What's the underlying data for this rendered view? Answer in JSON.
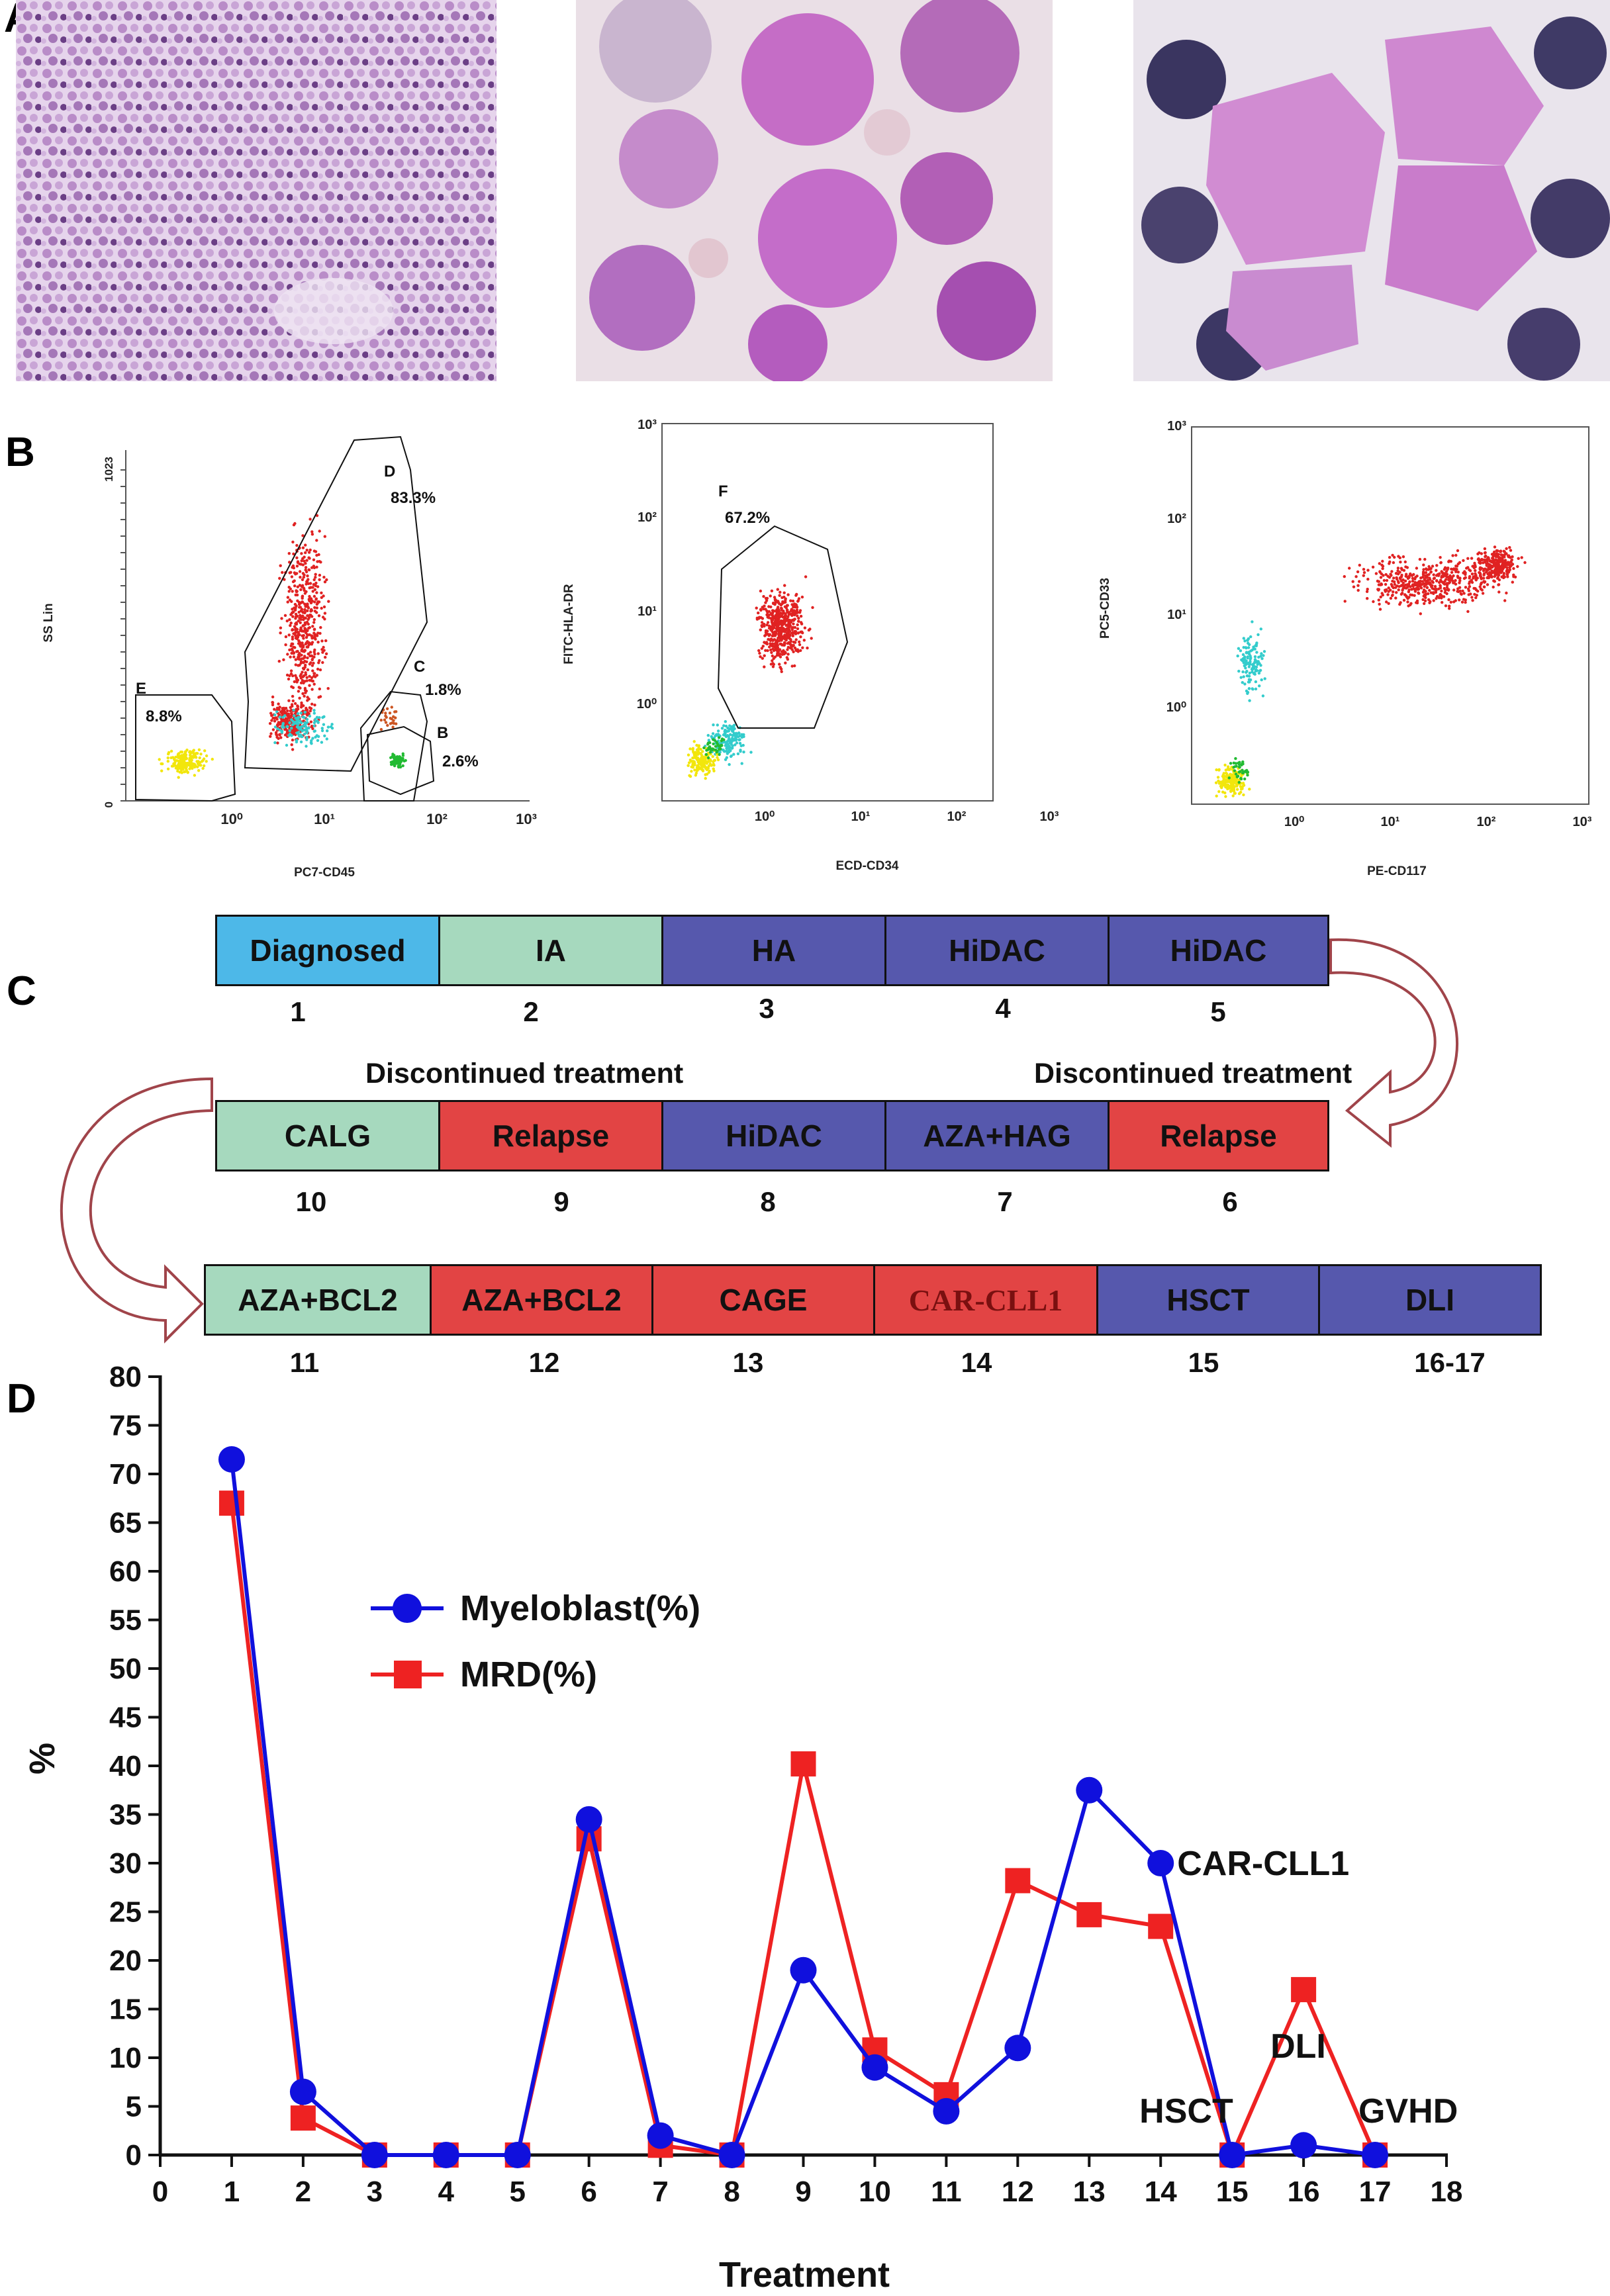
{
  "panels": {
    "A": "A",
    "B": "B",
    "C": "C",
    "D": "D"
  },
  "colors": {
    "myeloblast": "#1010dd",
    "mrd": "#ee2222",
    "diagnosed": "#4db8e8",
    "induction": "#a6d9be",
    "consolidation": "#5658ad",
    "relapse": "#e24444",
    "arrow": "#a0444a"
  },
  "flow": {
    "plot1": {
      "ylabel": "SS Lin",
      "xlabel": "PC7-CD45",
      "ymax_tick": "1023",
      "y0_tick": "0",
      "xticks": [
        "10⁰",
        "10¹",
        "10²",
        "10³"
      ],
      "gates": [
        {
          "letter": "D",
          "pct": "83.3%"
        },
        {
          "letter": "C",
          "pct": "1.8%"
        },
        {
          "letter": "B",
          "pct": "2.6%"
        },
        {
          "letter": "E",
          "pct": "8.8%"
        }
      ]
    },
    "plot2": {
      "ylabel": "FITC-HLA-DR",
      "xlabel": "ECD-CD34",
      "yticks": [
        "10³",
        "10²",
        "10¹",
        "10⁰"
      ],
      "xticks": [
        "10⁰",
        "10¹",
        "10²",
        "10³"
      ],
      "gates": [
        {
          "letter": "F",
          "pct": "67.2%"
        }
      ]
    },
    "plot3": {
      "ylabel": "PC5-CD33",
      "xlabel": "PE-CD117",
      "yticks": [
        "10³",
        "10²",
        "10¹",
        "10⁰"
      ],
      "xticks": [
        "10⁰",
        "10¹",
        "10²",
        "10³"
      ]
    }
  },
  "timeline": {
    "row1": [
      {
        "label": "Diagnosed",
        "num": "1",
        "kind": "diagnosed"
      },
      {
        "label": "IA",
        "num": "2",
        "kind": "induction"
      },
      {
        "label": "HA",
        "num": "3",
        "kind": "consolidation"
      },
      {
        "label": "HiDAC",
        "num": "4",
        "kind": "consolidation"
      },
      {
        "label": "HiDAC",
        "num": "5",
        "kind": "consolidation"
      }
    ],
    "row2": [
      {
        "label": "CALG",
        "num": "10",
        "kind": "induction"
      },
      {
        "label": "Relapse",
        "num": "9",
        "kind": "relapse"
      },
      {
        "label": "HiDAC",
        "num": "8",
        "kind": "consolidation"
      },
      {
        "label": "AZA+HAG",
        "num": "7",
        "kind": "consolidation"
      },
      {
        "label": "Relapse",
        "num": "6",
        "kind": "relapse"
      }
    ],
    "row3": [
      {
        "label": "AZA+BCL2",
        "num": "11",
        "kind": "induction"
      },
      {
        "label": "AZA+BCL2",
        "num": "12",
        "kind": "relapse"
      },
      {
        "label": "CAGE",
        "num": "13",
        "kind": "relapse"
      },
      {
        "label": "CAR-CLL1",
        "num": "14",
        "kind": "relapse"
      },
      {
        "label": "HSCT",
        "num": "15",
        "kind": "consolidation"
      },
      {
        "label": "DLI",
        "num": "16-17",
        "kind": "consolidation"
      }
    ],
    "discontinued_1": "Discontinued treatment",
    "discontinued_2": "Discontinued treatment"
  },
  "chart_data": {
    "type": "line",
    "title": "",
    "xlabel": "Treatment",
    "ylabel": "%",
    "xlim": [
      0,
      18
    ],
    "ylim": [
      0,
      80
    ],
    "x": [
      1,
      2,
      3,
      4,
      5,
      6,
      7,
      8,
      9,
      10,
      11,
      12,
      13,
      14,
      15,
      16,
      17
    ],
    "xticks": [
      "0",
      "1",
      "2",
      "3",
      "4",
      "5",
      "6",
      "7",
      "8",
      "9",
      "10",
      "11",
      "12",
      "13",
      "14",
      "15",
      "16",
      "17",
      "18"
    ],
    "yticks": [
      "0",
      "5",
      "10",
      "15",
      "20",
      "25",
      "30",
      "35",
      "40",
      "45",
      "50",
      "55",
      "60",
      "65",
      "70",
      "75",
      "80"
    ],
    "series": [
      {
        "name": "Myeloblast(%)",
        "marker": "circle",
        "values": [
          71.5,
          6.5,
          0,
          0,
          0,
          34.5,
          2,
          0,
          19,
          9,
          4.5,
          11,
          37.5,
          30,
          0,
          1,
          0
        ]
      },
      {
        "name": "MRD(%)",
        "marker": "square",
        "values": [
          67,
          3.8,
          0,
          0,
          0,
          32.5,
          1,
          0,
          40.2,
          10.8,
          6.2,
          28.2,
          24.7,
          23.5,
          0,
          17,
          0
        ]
      }
    ],
    "annotations": [
      {
        "text": "CAR-CLL1",
        "x": 14,
        "y": 30
      },
      {
        "text": "HSCT",
        "x": 15,
        "y": 4
      },
      {
        "text": "DLI",
        "x": 16,
        "y": 10
      },
      {
        "text": "GVHD",
        "x": 17,
        "y": 4
      }
    ],
    "legend_position": "top-center"
  }
}
